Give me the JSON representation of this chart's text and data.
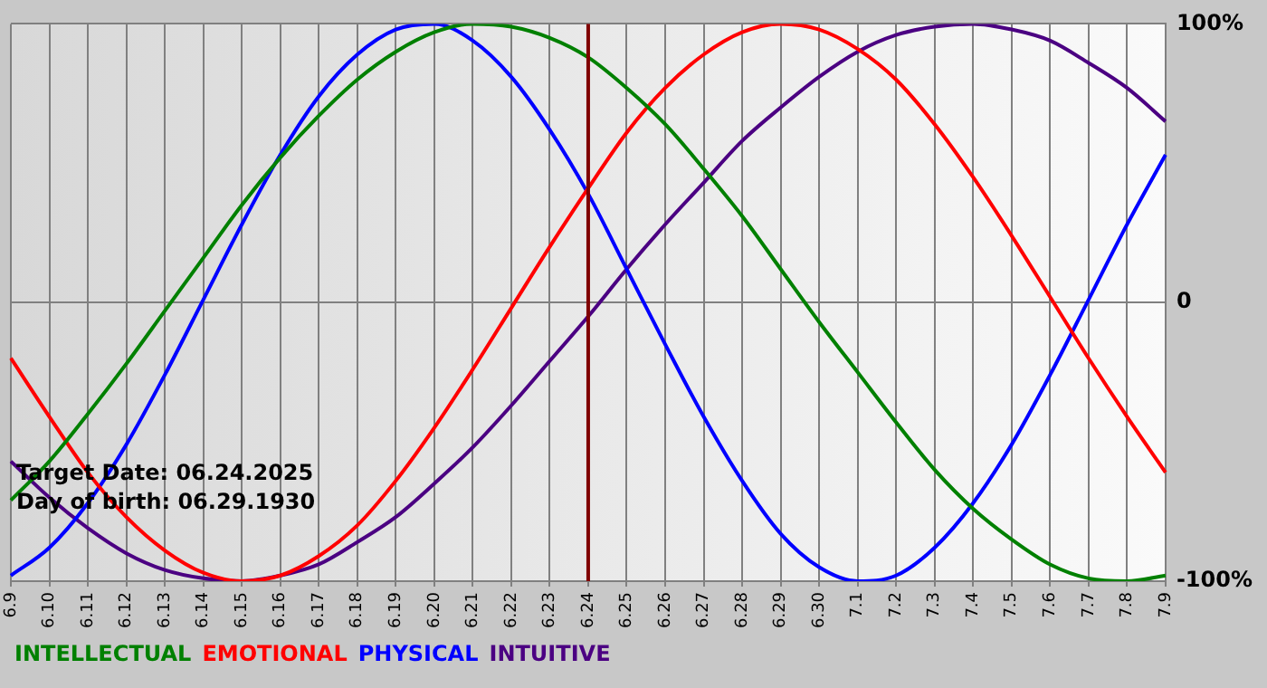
{
  "chart_data": {
    "type": "line",
    "categories": [
      "6.9",
      "6.10",
      "6.11",
      "6.12",
      "6.13",
      "6.14",
      "6.15",
      "6.16",
      "6.17",
      "6.18",
      "6.19",
      "6.20",
      "6.21",
      "6.22",
      "6.23",
      "6.24",
      "6.25",
      "6.26",
      "6.27",
      "6.28",
      "6.29",
      "6.30",
      "7.1",
      "7.2",
      "7.3",
      "7.4",
      "7.5",
      "7.6",
      "7.7",
      "7.8",
      "7.9"
    ],
    "series": [
      {
        "name": "INTELLECTUAL",
        "color": "#008000",
        "values": [
          -71,
          -57,
          -40,
          -22,
          -3,
          16,
          35,
          52,
          67,
          80,
          90,
          97,
          100,
          99,
          95,
          88,
          77,
          64,
          48,
          31,
          12,
          -7,
          -25,
          -43,
          -60,
          -74,
          -85,
          -94,
          -99,
          -100,
          -98
        ]
      },
      {
        "name": "EMOTIONAL",
        "color": "#ff0000",
        "values": [
          -20,
          -41,
          -61,
          -77,
          -89,
          -97,
          -100,
          -98,
          -91,
          -80,
          -64,
          -45,
          -24,
          -2,
          20,
          41,
          61,
          77,
          89,
          97,
          100,
          98,
          91,
          80,
          64,
          45,
          24,
          2,
          -20,
          -41,
          -61
        ]
      },
      {
        "name": "PHYSICAL",
        "color": "#0000ff",
        "values": [
          -98,
          -88,
          -72,
          -51,
          -26,
          1,
          28,
          53,
          74,
          89,
          98,
          100,
          94,
          81,
          62,
          39,
          12,
          -15,
          -41,
          -64,
          -83,
          -95,
          -100,
          -98,
          -88,
          -72,
          -51,
          -26,
          1,
          28,
          53
        ]
      },
      {
        "name": "INTUITIVE",
        "color": "#4b0082",
        "values": [
          -57,
          -70,
          -81,
          -90,
          -96,
          -99,
          -100,
          -98,
          -94,
          -86,
          -77,
          -65,
          -52,
          -37,
          -21,
          -5,
          12,
          28,
          43,
          58,
          70,
          81,
          90,
          96,
          99,
          100,
          98,
          94,
          86,
          77,
          65
        ]
      }
    ],
    "ylim": [
      -100,
      100
    ],
    "yticks": [
      {
        "value": -100,
        "label": "-100%"
      },
      0,
      {
        "value": 100,
        "label": "100%"
      }
    ],
    "grid": true,
    "legend": "bottom left",
    "marker": "none",
    "line_style": "solid",
    "ref_lines": [
      {
        "axis": "x",
        "value": "6.24",
        "color": "#800000"
      }
    ],
    "annotations": [
      "Target Date: 06.24.2025",
      "Day of birth: 06.29.1930"
    ]
  }
}
